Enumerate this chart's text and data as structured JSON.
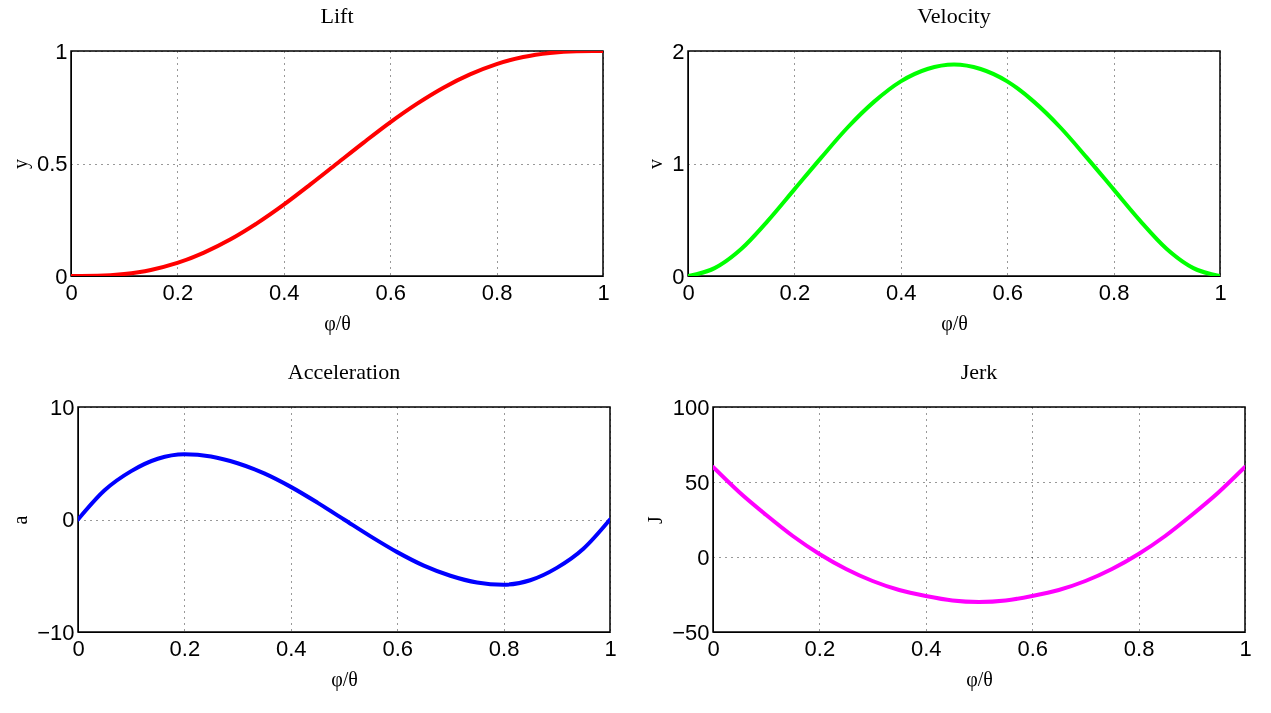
{
  "chart_data": [
    {
      "type": "line",
      "title": "Lift",
      "xlabel": "φ/θ",
      "ylabel": "y",
      "x": [
        0,
        0.05,
        0.1,
        0.15,
        0.2,
        0.25,
        0.3,
        0.35,
        0.4,
        0.45,
        0.5,
        0.55,
        0.6,
        0.65,
        0.7,
        0.75,
        0.8,
        0.85,
        0.9,
        0.95,
        1
      ],
      "series": [
        {
          "color": "#ff0000",
          "values": [
            0,
            0.001,
            0.009,
            0.027,
            0.058,
            0.104,
            0.163,
            0.235,
            0.317,
            0.407,
            0.5,
            0.593,
            0.683,
            0.765,
            0.837,
            0.896,
            0.942,
            0.973,
            0.991,
            0.999,
            1
          ]
        }
      ],
      "xlim": [
        0,
        1
      ],
      "xticks": [
        0,
        0.2,
        0.4,
        0.6,
        0.8,
        1
      ],
      "ylim": [
        0,
        1
      ],
      "yticks": [
        0,
        0.5,
        1
      ],
      "grid": true,
      "line_style": "solid"
    },
    {
      "type": "line",
      "title": "Velocity",
      "xlabel": "φ/θ",
      "ylabel": "v",
      "x": [
        0,
        0.05,
        0.1,
        0.15,
        0.2,
        0.25,
        0.3,
        0.35,
        0.4,
        0.45,
        0.5,
        0.55,
        0.6,
        0.65,
        0.7,
        0.75,
        0.8,
        0.85,
        0.9,
        0.95,
        1
      ],
      "series": [
        {
          "color": "#00ff00",
          "values": [
            0,
            0.07,
            0.24,
            0.49,
            0.77,
            1.05,
            1.32,
            1.55,
            1.73,
            1.84,
            1.88,
            1.84,
            1.73,
            1.55,
            1.32,
            1.05,
            0.77,
            0.49,
            0.24,
            0.07,
            0
          ]
        }
      ],
      "xlim": [
        0,
        1
      ],
      "xticks": [
        0,
        0.2,
        0.4,
        0.6,
        0.8,
        1
      ],
      "ylim": [
        0,
        2
      ],
      "yticks": [
        0,
        1,
        2
      ],
      "grid": true,
      "line_style": "solid"
    },
    {
      "type": "line",
      "title": "Acceleration",
      "xlabel": "φ/θ",
      "ylabel": "a",
      "x": [
        0,
        0.05,
        0.1,
        0.15,
        0.2,
        0.25,
        0.3,
        0.35,
        0.4,
        0.45,
        0.5,
        0.55,
        0.6,
        0.65,
        0.7,
        0.75,
        0.8,
        0.85,
        0.9,
        0.95,
        1
      ],
      "series": [
        {
          "color": "#0000ff",
          "values": [
            0,
            2.6,
            4.3,
            5.4,
            5.8,
            5.6,
            5.0,
            4.1,
            2.9,
            1.5,
            0,
            -1.5,
            -2.9,
            -4.1,
            -5.0,
            -5.6,
            -5.8,
            -5.4,
            -4.3,
            -2.6,
            0
          ]
        }
      ],
      "xlim": [
        0,
        1
      ],
      "xticks": [
        0,
        0.2,
        0.4,
        0.6,
        0.8,
        1
      ],
      "ylim": [
        -10,
        10
      ],
      "yticks": [
        -10,
        0,
        10
      ],
      "grid": true,
      "line_style": "solid"
    },
    {
      "type": "line",
      "title": "Jerk",
      "xlabel": "φ/θ",
      "ylabel": "J",
      "x": [
        0,
        0.05,
        0.1,
        0.15,
        0.2,
        0.25,
        0.3,
        0.35,
        0.4,
        0.45,
        0.5,
        0.55,
        0.6,
        0.65,
        0.7,
        0.75,
        0.8,
        0.85,
        0.9,
        0.95,
        1
      ],
      "series": [
        {
          "color": "#ff00ff",
          "values": [
            60,
            43,
            28,
            14,
            2,
            -8,
            -16,
            -22,
            -26,
            -29,
            -30,
            -29,
            -26,
            -22,
            -16,
            -8,
            2,
            14,
            28,
            43,
            60
          ]
        }
      ],
      "xlim": [
        0,
        1
      ],
      "xticks": [
        0,
        0.2,
        0.4,
        0.6,
        0.8,
        1
      ],
      "ylim": [
        -50,
        100
      ],
      "yticks": [
        -50,
        0,
        50,
        100
      ],
      "grid": true,
      "line_style": "solid"
    }
  ]
}
